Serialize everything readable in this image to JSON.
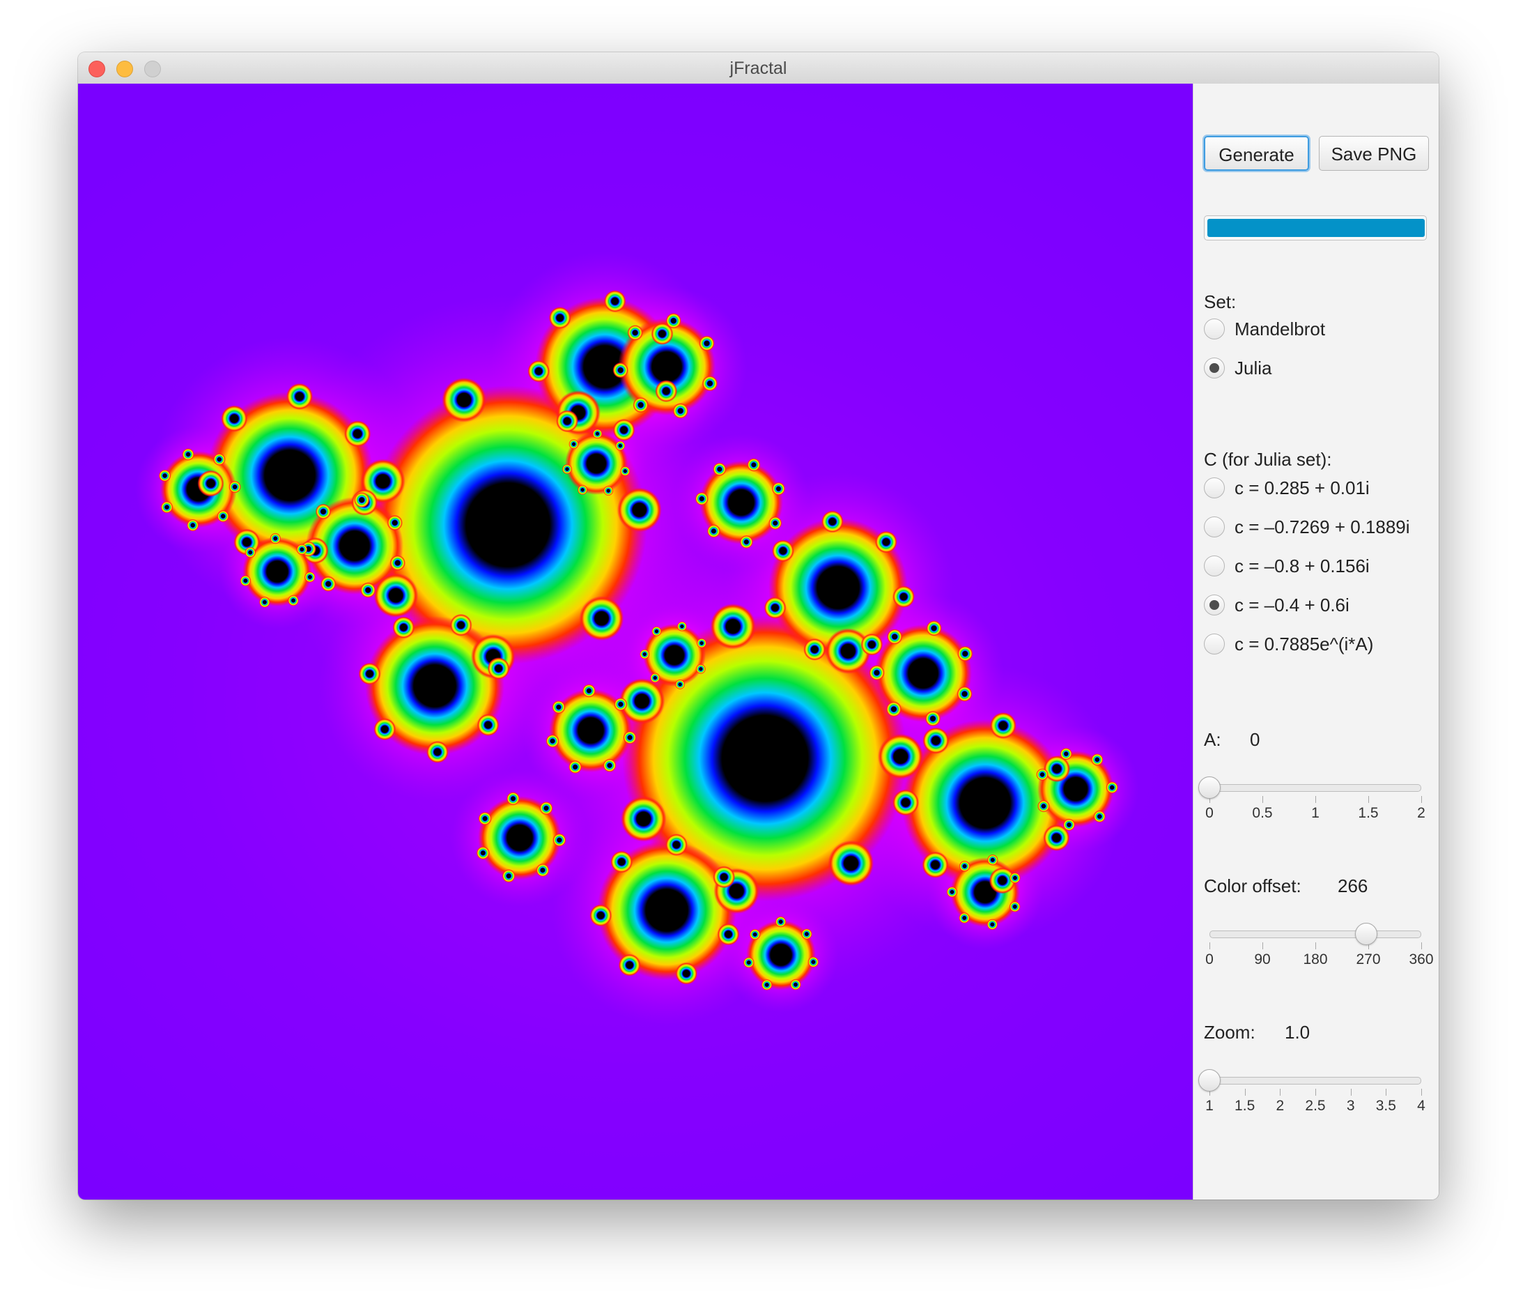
{
  "window": {
    "title": "jFractal"
  },
  "toolbar": {
    "generate_label": "Generate",
    "save_label": "Save PNG"
  },
  "progress": {
    "value": 1.0,
    "color": "#0492c8"
  },
  "set_group": {
    "label": "Set:",
    "options": [
      {
        "label": "Mandelbrot",
        "selected": false
      },
      {
        "label": "Julia",
        "selected": true
      }
    ]
  },
  "c_group": {
    "label": "C (for Julia set):",
    "options": [
      {
        "label": "c = 0.285 + 0.01i",
        "selected": false
      },
      {
        "label": "c = –0.7269 + 0.1889i",
        "selected": false
      },
      {
        "label": "c = –0.8 + 0.156i",
        "selected": false
      },
      {
        "label": "c = –0.4 + 0.6i",
        "selected": true
      },
      {
        "label": "c = 0.7885e^(i*A)",
        "selected": false
      }
    ]
  },
  "a_slider": {
    "label": "A:",
    "value_text": "0",
    "value": 0,
    "min": 0,
    "max": 2,
    "tick_labels": [
      "0",
      "0.5",
      "1",
      "1.5",
      "2"
    ]
  },
  "color_slider": {
    "label": "Color offset:",
    "value_text": "266",
    "value": 266,
    "min": 0,
    "max": 360,
    "tick_labels": [
      "0",
      "90",
      "180",
      "270",
      "360"
    ]
  },
  "zoom_slider": {
    "label": "Zoom:",
    "value_text": "1.0",
    "value": 1.0,
    "min": 1,
    "max": 4,
    "tick_labels": [
      "1",
      "1.5",
      "2",
      "2.5",
      "3",
      "3.5",
      "4"
    ]
  },
  "canvas": {
    "background": "#7a00ff",
    "content": "julia-set-fractal"
  }
}
